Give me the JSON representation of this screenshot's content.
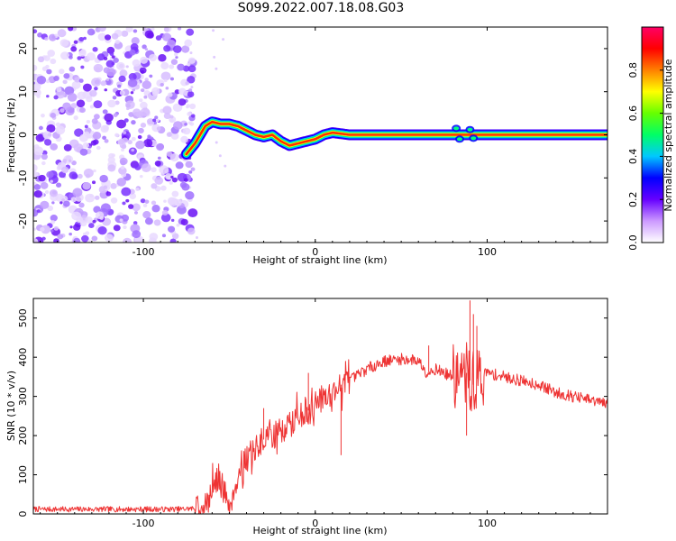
{
  "page": {
    "title": "S099.2022.007.18.08.G03"
  },
  "chart_data": [
    {
      "type": "heatmap",
      "xlabel": "Height of straight line (km)",
      "ylabel": "Frequency (Hz)",
      "xlim": [
        -164,
        170
      ],
      "ylim": [
        -25,
        25
      ],
      "x_ticks": [
        -100,
        0,
        100
      ],
      "y_ticks": [
        -20,
        -10,
        0,
        10,
        20
      ],
      "noise_region_x": [
        -164,
        -73
      ],
      "ridge": {
        "x": [
          -75,
          -70,
          -64,
          -60,
          -55,
          -50,
          -45,
          -40,
          -35,
          -30,
          -25,
          -20,
          -15,
          -10,
          -5,
          0,
          5,
          10,
          20,
          50,
          80,
          90,
          100,
          170
        ],
        "frequency": [
          -4.5,
          -2,
          2,
          3,
          2.5,
          2.5,
          2,
          1,
          0,
          -0.5,
          0,
          -1.5,
          -2.5,
          -2,
          -1.5,
          -1,
          0,
          0.5,
          0,
          0,
          0,
          0,
          0,
          0
        ]
      },
      "colorbar": {
        "label": "Normalized spectral amplitude",
        "range": [
          0,
          1
        ],
        "ticks": [
          "0.0",
          "0.2",
          "0.4",
          "0.6",
          "0.8"
        ],
        "tick_values": [
          0,
          0.2,
          0.4,
          0.6,
          0.8
        ],
        "colors": [
          "#ffffff",
          "#cc99ff",
          "#6600ff",
          "#0000ff",
          "#00c8ff",
          "#00ff66",
          "#66ff00",
          "#ffff00",
          "#ff8000",
          "#ff0000",
          "#ff0066"
        ]
      }
    },
    {
      "type": "line",
      "xlabel": "Height of straight line (km)",
      "ylabel": "SNR (10 * v/v)",
      "xlim": [
        -164,
        170
      ],
      "ylim": [
        0,
        550
      ],
      "x_ticks": [
        -100,
        0,
        100
      ],
      "y_ticks": [
        0,
        100,
        200,
        300,
        400,
        500
      ],
      "color": "#ee3333",
      "series": [
        {
          "x": [
            -164,
            -140,
            -120,
            -100,
            -80,
            -70,
            -62,
            -58,
            -54,
            -50,
            -46,
            -42,
            -38,
            -34,
            -30,
            -25,
            -20,
            -15,
            -10,
            -5,
            0,
            5,
            10,
            15,
            20,
            30,
            40,
            50,
            60,
            65,
            70,
            75,
            80,
            85,
            88,
            90,
            92,
            94,
            96,
            100,
            110,
            120,
            130,
            140,
            150,
            160,
            170
          ],
          "values": [
            12,
            12,
            12,
            12,
            12,
            14,
            30,
            90,
            70,
            20,
            80,
            130,
            150,
            170,
            190,
            200,
            210,
            230,
            250,
            260,
            280,
            300,
            310,
            330,
            340,
            370,
            390,
            395,
            392,
            360,
            370,
            360,
            350,
            345,
            360,
            340,
            330,
            345,
            355,
            360,
            350,
            340,
            330,
            310,
            300,
            290,
            280
          ]
        }
      ]
    }
  ]
}
